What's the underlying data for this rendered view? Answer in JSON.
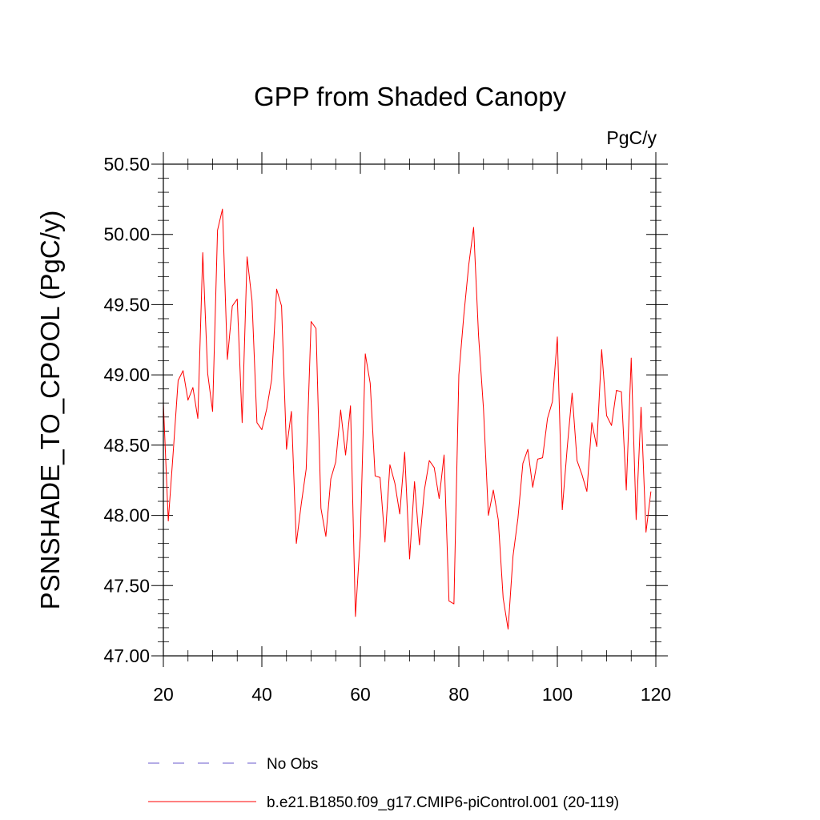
{
  "chart_data": {
    "type": "line",
    "title": "GPP from Shaded Canopy",
    "units": "PgC/y",
    "ylabel": "PSNSHADE_TO_CPOOL  (PgC/y)",
    "xlabel": "",
    "xlim": [
      20,
      120
    ],
    "ylim": [
      47.0,
      50.5
    ],
    "x_ticks": [
      20,
      40,
      60,
      80,
      100,
      120
    ],
    "x_tick_labels": [
      "20",
      "40",
      "60",
      "80",
      "100",
      "120"
    ],
    "y_ticks": [
      47.0,
      47.5,
      48.0,
      48.5,
      49.0,
      49.5,
      50.0,
      50.5
    ],
    "y_tick_labels": [
      "47.00",
      "47.50",
      "48.00",
      "48.50",
      "49.00",
      "49.50",
      "50.00",
      "50.50"
    ],
    "legend": [
      {
        "name": "No Obs",
        "color": "#6a5acd",
        "style": "dashed"
      },
      {
        "name": "b.e21.B1850.f09_g17.CMIP6-piControl.001 (20-119)",
        "color": "#ff0000",
        "style": "solid"
      }
    ],
    "series": [
      {
        "name": "b.e21.B1850.f09_g17.CMIP6-piControl.001 (20-119)",
        "color": "#ff0000",
        "x_start": 20,
        "values": [
          48.8,
          47.96,
          48.45,
          48.96,
          49.03,
          48.82,
          48.91,
          48.69,
          49.87,
          49.01,
          48.74,
          50.03,
          50.18,
          49.11,
          49.49,
          49.54,
          48.66,
          49.84,
          49.53,
          48.66,
          48.61,
          48.76,
          48.97,
          49.61,
          49.49,
          48.47,
          48.74,
          47.8,
          48.08,
          48.33,
          49.38,
          49.33,
          48.05,
          47.85,
          48.26,
          48.38,
          48.75,
          48.43,
          48.78,
          47.28,
          47.85,
          49.15,
          48.94,
          48.28,
          48.27,
          47.81,
          48.36,
          48.23,
          48.01,
          48.45,
          47.69,
          48.24,
          47.79,
          48.18,
          48.39,
          48.34,
          48.12,
          48.43,
          47.39,
          47.37,
          49.0,
          49.42,
          49.78,
          50.05,
          49.28,
          48.76,
          48.0,
          48.18,
          47.97,
          47.41,
          47.19,
          47.71,
          47.98,
          48.37,
          48.47,
          48.2,
          48.4,
          48.41,
          48.69,
          48.81,
          49.27,
          48.04,
          48.48,
          48.87,
          48.39,
          48.29,
          48.17,
          48.66,
          48.49,
          49.18,
          48.71,
          48.64,
          48.89,
          48.88,
          48.18,
          49.12,
          47.97,
          48.77,
          47.88,
          48.17
        ]
      }
    ]
  }
}
